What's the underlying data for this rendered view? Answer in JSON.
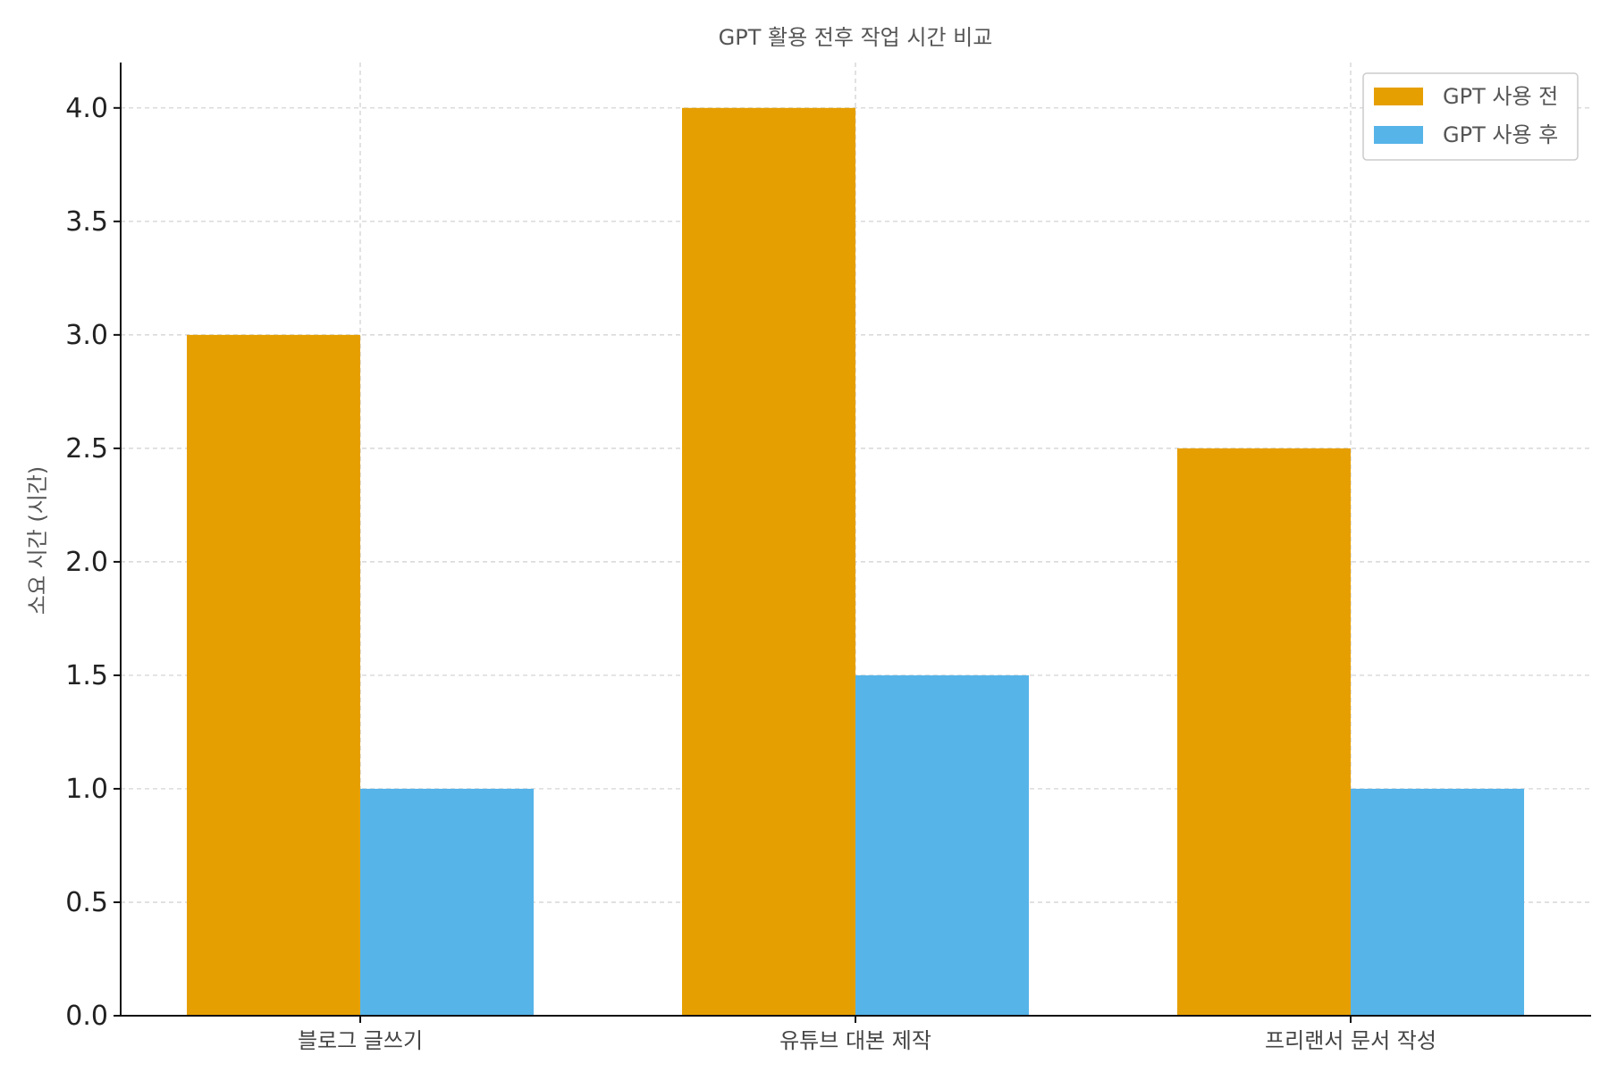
{
  "chart_data": {
    "type": "bar",
    "title": "GPT 활용 전후 작업 시간 비교",
    "xlabel": "",
    "ylabel": "소요 시간 (시간)",
    "categories": [
      "블로그 글쓰기",
      "유튜브 대본 제작",
      "프리랜서 문서 작성"
    ],
    "series": [
      {
        "name": "GPT 사용 전",
        "values": [
          3.0,
          4.0,
          2.5
        ],
        "color": "#E69F00"
      },
      {
        "name": "GPT 사용 후",
        "values": [
          1.0,
          1.5,
          1.0
        ],
        "color": "#56B4E9"
      }
    ],
    "ylim": [
      0,
      4.2
    ],
    "yticks": [
      "0.0",
      "0.5",
      "1.0",
      "1.5",
      "2.0",
      "2.5",
      "3.0",
      "3.5",
      "4.0"
    ],
    "grid": true,
    "legend_position": "top-right"
  }
}
